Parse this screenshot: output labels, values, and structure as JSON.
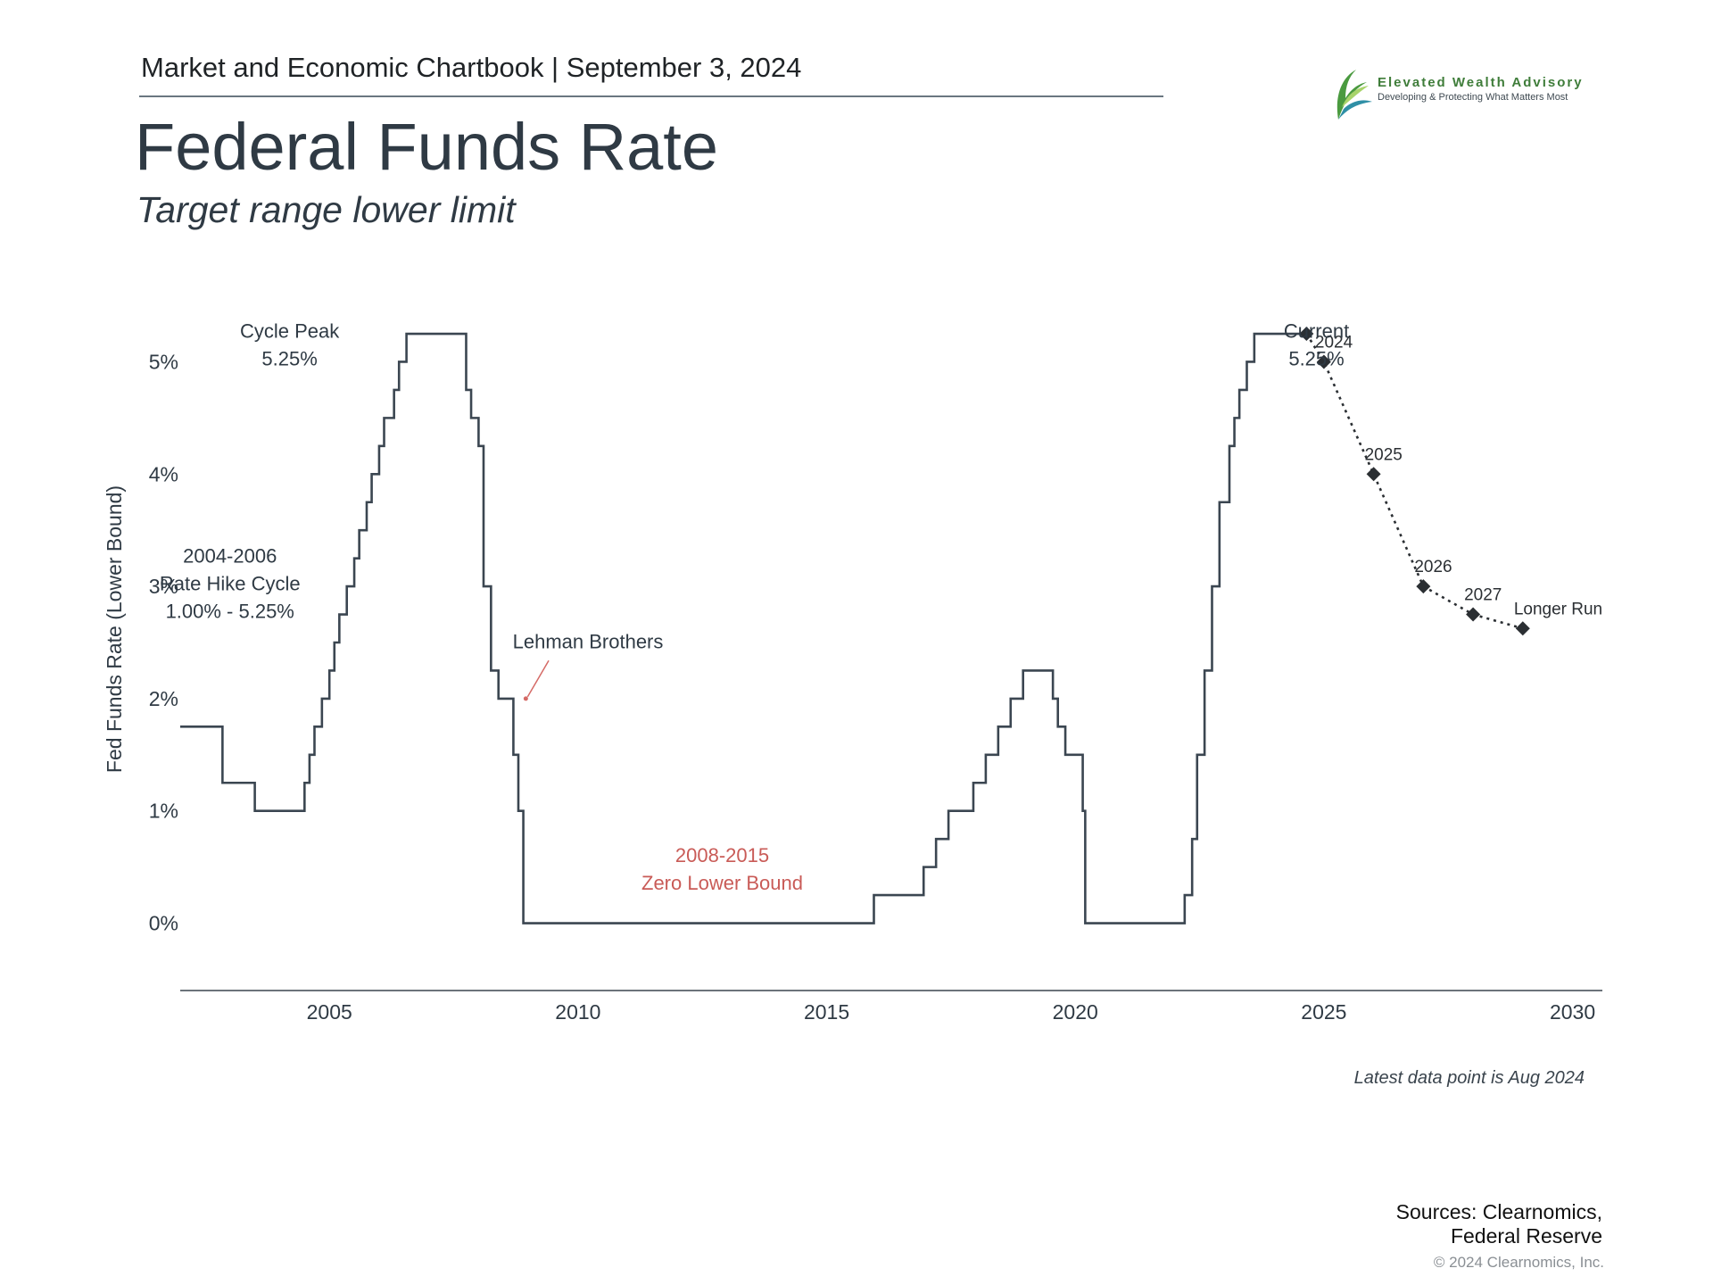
{
  "header": {
    "chartbook": "Market and Economic Chartbook | September 3, 2024",
    "title": "Federal Funds Rate",
    "subtitle": "Target range lower limit"
  },
  "logo": {
    "name": "Elevated Wealth Advisory",
    "tagline": "Developing & Protecting What Matters Most",
    "icon": "leaf-icon",
    "colors": [
      "#4a9a3f",
      "#2f8fa6",
      "#a8d36a"
    ]
  },
  "chart_data": {
    "type": "line",
    "ylabel": "Fed Funds Rate (Lower Bound)",
    "xlabel": "",
    "xlim": [
      2002,
      2030.6
    ],
    "ylim": [
      -0.6,
      5.6
    ],
    "yticks": [
      0,
      1,
      2,
      3,
      4,
      5
    ],
    "ytick_labels": [
      "0%",
      "1%",
      "2%",
      "3%",
      "4%",
      "5%"
    ],
    "xticks": [
      2005,
      2010,
      2015,
      2020,
      2025,
      2030
    ],
    "xtick_labels": [
      "2005",
      "2010",
      "2015",
      "2020",
      "2025",
      "2030"
    ],
    "grid": false,
    "series": [
      {
        "style": "step-solid",
        "color": "#3b4651",
        "x": [
          2002.0,
          2002.85,
          2003.5,
          2004.5,
          2004.6,
          2004.7,
          2004.85,
          2005.0,
          2005.1,
          2005.2,
          2005.35,
          2005.5,
          2005.6,
          2005.75,
          2005.85,
          2006.0,
          2006.1,
          2006.3,
          2006.4,
          2006.55,
          2007.75,
          2007.85,
          2008.0,
          2008.1,
          2008.25,
          2008.4,
          2008.7,
          2008.8,
          2008.9,
          2009.0,
          2015.95,
          2016.95,
          2017.2,
          2017.45,
          2017.95,
          2018.2,
          2018.45,
          2018.7,
          2018.95,
          2019.55,
          2019.65,
          2019.8,
          2020.15,
          2020.2,
          2022.2,
          2022.35,
          2022.45,
          2022.6,
          2022.75,
          2022.9,
          2023.1,
          2023.2,
          2023.3,
          2023.45,
          2023.6,
          2024.6
        ],
        "y": [
          1.75,
          1.25,
          1.0,
          1.25,
          1.5,
          1.75,
          2.0,
          2.25,
          2.5,
          2.75,
          3.0,
          3.25,
          3.5,
          3.75,
          4.0,
          4.25,
          4.5,
          4.75,
          5.0,
          5.25,
          4.75,
          4.5,
          4.25,
          3.0,
          2.25,
          2.0,
          1.5,
          1.0,
          0.0,
          0.0,
          0.25,
          0.5,
          0.75,
          1.0,
          1.25,
          1.5,
          1.75,
          2.0,
          2.25,
          2.0,
          1.75,
          1.5,
          1.0,
          0.0,
          0.25,
          0.75,
          1.5,
          2.25,
          3.0,
          3.75,
          4.25,
          4.5,
          4.75,
          5.0,
          5.25,
          5.25
        ]
      },
      {
        "style": "dotted-projection",
        "color": "#2b2f33",
        "marker": "diamond",
        "x": [
          2024.65,
          2025.0,
          2026.0,
          2027.0,
          2028.0,
          2029.0
        ],
        "y": [
          5.25,
          5.0,
          4.0,
          3.0,
          2.75,
          2.625
        ],
        "point_labels": [
          "",
          "2024",
          "2025",
          "2026",
          "2027",
          "Longer Run"
        ]
      }
    ],
    "annotations": [
      {
        "lines": [
          "Cycle Peak",
          "5.25%"
        ],
        "x": 2004.2,
        "y": 4.97,
        "color": "#2f3a44"
      },
      {
        "lines": [
          "Current",
          "5.25%"
        ],
        "x": 2024.85,
        "y": 4.97,
        "color": "#2f3a44"
      },
      {
        "lines": [
          "2004-2006",
          "Rate Hike Cycle",
          "1.00% - 5.25%"
        ],
        "x": 2003.0,
        "y": 2.72,
        "color": "#2f3a44"
      },
      {
        "lines": [
          "Lehman Brothers"
        ],
        "x": 2010.2,
        "y": 2.45,
        "color": "#2f3a44",
        "arrow_to": [
          2008.95,
          2.0
        ]
      },
      {
        "lines": [
          "2008-2015",
          "Zero Lower Bound"
        ],
        "x": 2012.9,
        "y": 0.3,
        "color": "#c95b57"
      }
    ]
  },
  "footer": {
    "latest_note": "Latest data point is Aug 2024",
    "sources_line1": "Sources: Clearnomics,",
    "sources_line2": "Federal Reserve",
    "copyright": "© 2024 Clearnomics, Inc."
  }
}
